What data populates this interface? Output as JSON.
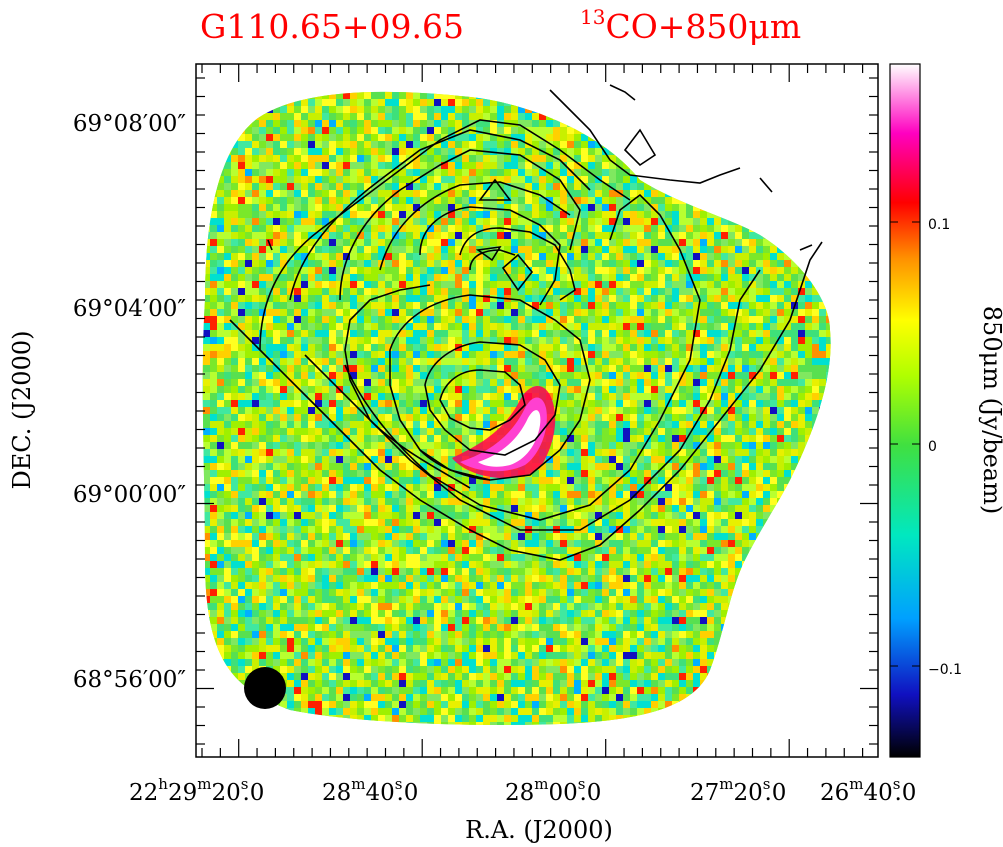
{
  "chart_data": {
    "type": "heatmap",
    "title_left": "G110.65+09.65",
    "title_right_sup": "13",
    "title_right": "CO+850μm",
    "xlabel": "R.A.  (J2000)",
    "ylabel": "DEC.  (J2000)",
    "colorbar_label": "850μm  (Jy/beam)",
    "colorbar_range": [
      -0.14,
      0.15
    ],
    "colorbar_ticks": [
      {
        "value": 0.1,
        "label": "0.1"
      },
      {
        "value": 0,
        "label": "0"
      },
      {
        "value": -0.1,
        "label": "−0.1"
      }
    ],
    "x_ticks": [
      {
        "value": "22h29m20.0s",
        "h": "22",
        "m": "29",
        "s": "20",
        "f": ".0"
      },
      {
        "value": "22h28m40.0s",
        "h": "",
        "m": "28",
        "s": "40",
        "f": ".0"
      },
      {
        "value": "22h28m00.0s",
        "h": "",
        "m": "28",
        "s": "00",
        "f": ".0"
      },
      {
        "value": "22h27m20.0s",
        "h": "",
        "m": "27",
        "s": "20",
        "f": ".0"
      },
      {
        "value": "22h26m40.0s",
        "h": "",
        "m": "26",
        "s": "40",
        "f": ".0"
      }
    ],
    "y_ticks": [
      {
        "value": "69°08'00\"",
        "label": "69°08′00″"
      },
      {
        "value": "69°04'00\"",
        "label": "69°04′00″"
      },
      {
        "value": "69°00'00\"",
        "label": "69°00′00″"
      },
      {
        "value": "68°56'00\"",
        "label": "68°56′00″"
      }
    ],
    "emission_peak": {
      "ra": "22h28m02s",
      "dec": "69°00'48\"",
      "value_jy_per_beam": 0.15
    },
    "contours": "13CO integrated intensity",
    "beam_marker": "filled circle, lower-left",
    "colormap": [
      "#000000",
      "#1010c0",
      "#00d0ff",
      "#00e8a0",
      "#7ae82a",
      "#ffff00",
      "#ff9000",
      "#ff0000",
      "#ff00c0",
      "#ffffff"
    ]
  }
}
